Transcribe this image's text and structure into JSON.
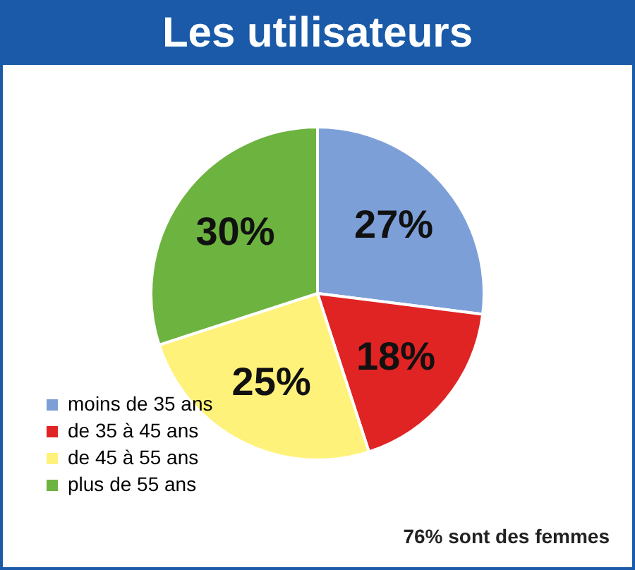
{
  "chart_data": {
    "type": "pie",
    "title": "Les utilisateurs",
    "categories": [
      "moins de 35 ans",
      "de 35 à 45 ans",
      "de 45 à 55  ans",
      "plus de 55 ans"
    ],
    "values": [
      27,
      18,
      25,
      30
    ],
    "value_labels": [
      "27%",
      "18%",
      "25%",
      "30%"
    ],
    "colors": [
      "#7d9fd8",
      "#e02323",
      "#fff27a",
      "#6db33f"
    ],
    "legend": "bottom left",
    "annotations": [
      "76% sont des femmes"
    ]
  }
}
